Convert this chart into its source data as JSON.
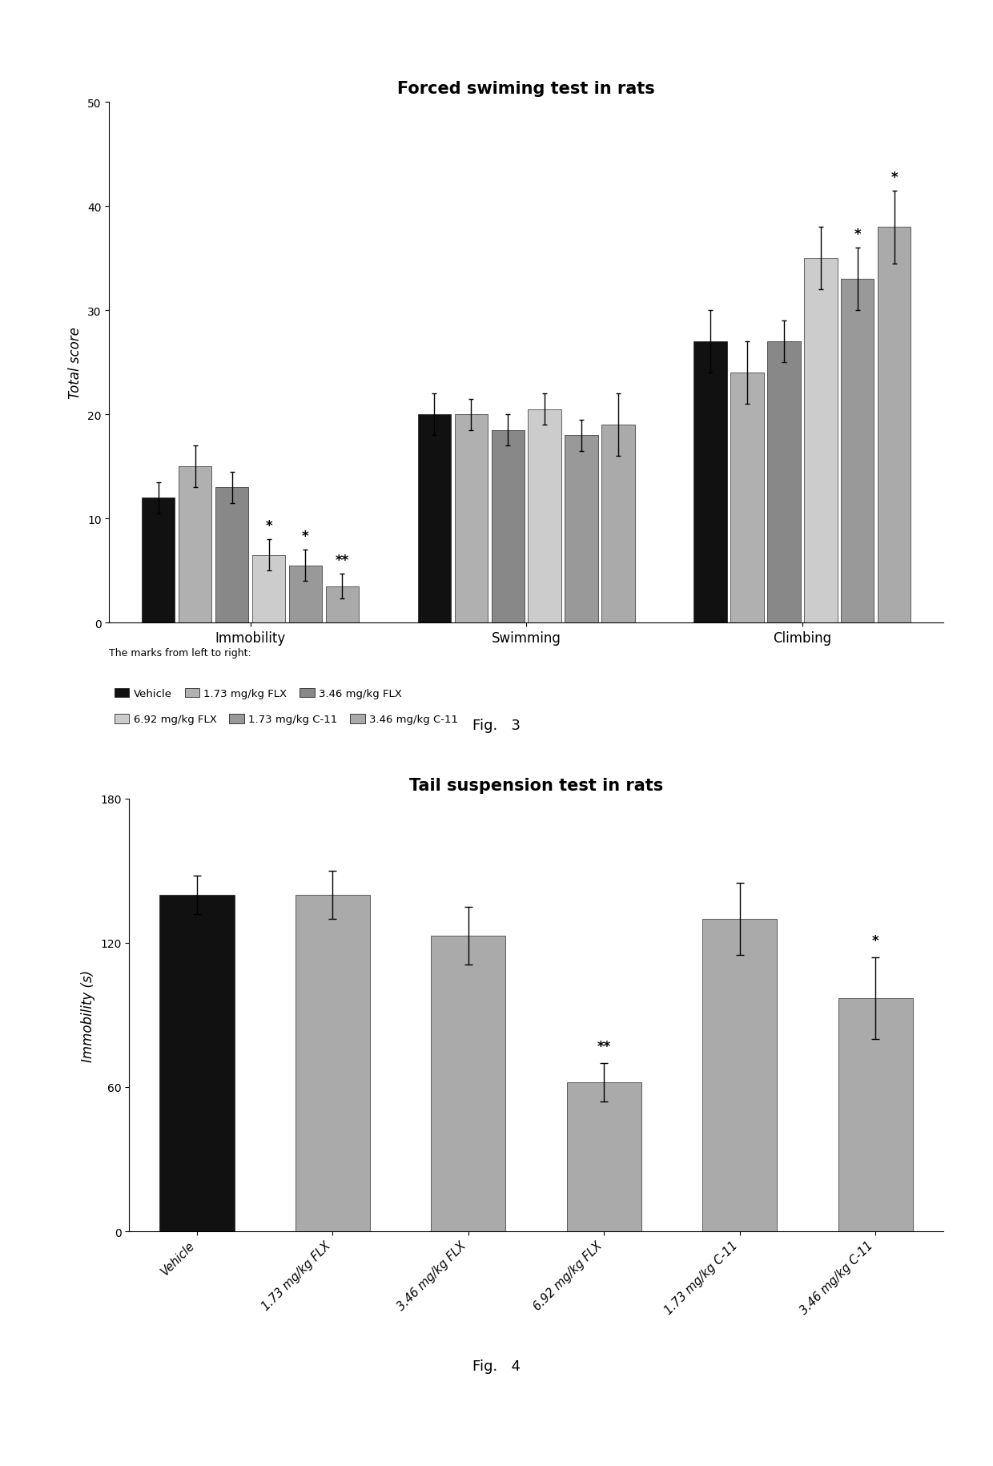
{
  "fig3": {
    "title": "Forced swiming test in rats",
    "ylabel": "Total score",
    "ylim": [
      0,
      50
    ],
    "yticks": [
      0,
      10,
      20,
      30,
      40,
      50
    ],
    "groups": [
      "Immobility",
      "Swimming",
      "Climbing"
    ],
    "series": [
      "Vehicle",
      "1.73 mg/kg FLX",
      "3.46 mg/kg FLX",
      "6.92 mg/kg FLX",
      "1.73 mg/kg C-11",
      "3.46 mg/kg C-11"
    ],
    "colors": [
      "#111111",
      "#b0b0b0",
      "#888888",
      "#cccccc",
      "#999999",
      "#aaaaaa"
    ],
    "bar_values": [
      [
        12,
        15,
        13,
        6.5,
        5.5,
        3.5
      ],
      [
        20,
        20,
        18.5,
        20.5,
        18,
        19
      ],
      [
        27,
        24,
        27,
        35,
        33,
        38
      ]
    ],
    "bar_errors": [
      [
        1.5,
        2.0,
        1.5,
        1.5,
        1.5,
        1.2
      ],
      [
        2.0,
        1.5,
        1.5,
        1.5,
        1.5,
        3.0
      ],
      [
        3.0,
        3.0,
        2.0,
        3.0,
        3.0,
        3.5
      ]
    ],
    "imm_sig_bars": [
      3,
      4,
      5
    ],
    "imm_sig_labels": [
      "*",
      "*",
      "**"
    ],
    "climb_sig_bars": [
      4,
      5
    ],
    "climb_sig_labels": [
      "*",
      "*"
    ],
    "legend_note": "The marks from left to right:",
    "fig_label": "Fig.   3"
  },
  "fig4": {
    "title": "Tail suspension test in rats",
    "ylabel": "Immobility (s)",
    "ylim": [
      0,
      180
    ],
    "yticks": [
      0,
      60,
      120,
      180
    ],
    "categories": [
      "Vehicle",
      "1.73 mg/kg FLX",
      "3.46 mg/kg FLX",
      "6.92 mg/kg FLX",
      "1.73 mg/kg C-11",
      "3.46 mg/kg C-11"
    ],
    "values": [
      140,
      140,
      123,
      62,
      130,
      97
    ],
    "errors": [
      8,
      10,
      12,
      8,
      15,
      17
    ],
    "colors": [
      "#111111",
      "#aaaaaa",
      "#aaaaaa",
      "#aaaaaa",
      "#aaaaaa",
      "#aaaaaa"
    ],
    "sig_bars": [
      3,
      5
    ],
    "sig_labels": [
      "**",
      "*"
    ],
    "fig_label": "Fig.   4"
  }
}
